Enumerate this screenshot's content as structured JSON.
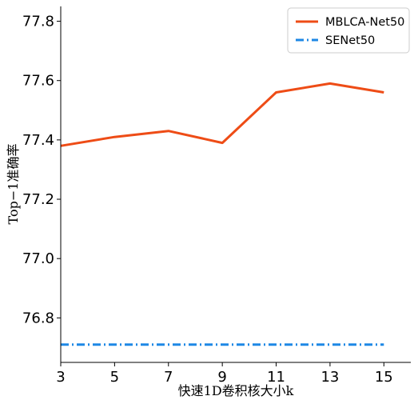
{
  "chart_data": {
    "type": "line",
    "x": [
      3,
      5,
      7,
      9,
      11,
      13,
      15
    ],
    "x_ticks": [
      "3",
      "5",
      "7",
      "9",
      "11",
      "13",
      "15"
    ],
    "y_ticks": [
      "76.8",
      "77.0",
      "77.2",
      "77.4",
      "77.6",
      "77.8"
    ],
    "y_tick_values": [
      76.8,
      77.0,
      77.2,
      77.4,
      77.6,
      77.8
    ],
    "xlim": [
      3,
      16
    ],
    "ylim": [
      76.65,
      77.85
    ],
    "xlabel": "快速1D卷积核大小k",
    "ylabel": "Top−1准确率",
    "grid": false,
    "legend_position": "top-right",
    "series": [
      {
        "name": "MBLCA-Net50",
        "values": [
          77.38,
          77.41,
          77.43,
          77.39,
          77.56,
          77.59,
          77.56
        ],
        "color": "#ee4c16",
        "style": "solid"
      },
      {
        "name": "SENet50",
        "values": [
          76.71,
          76.71,
          76.71,
          76.71,
          76.71,
          76.71,
          76.71
        ],
        "color": "#1e88e5",
        "style": "dashdot"
      }
    ]
  }
}
